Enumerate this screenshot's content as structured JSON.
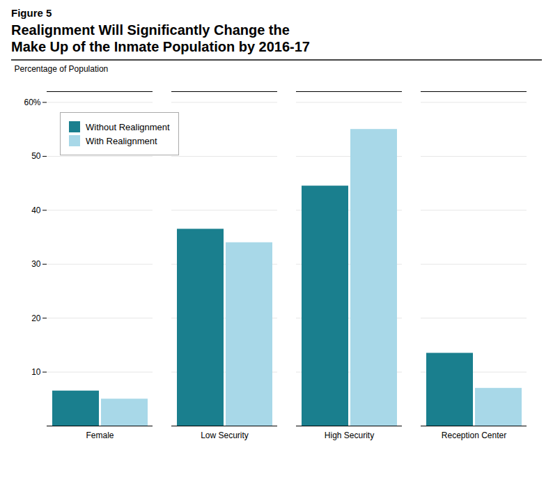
{
  "chart_data": {
    "type": "bar",
    "title": "Realignment Will Significantly Change the\nMake Up of the Inmate Population by 2016-17",
    "annotations": [
      "Figure 5"
    ],
    "ylabel": "Percentage of Population",
    "categories": [
      "Female",
      "Low Security",
      "High Security",
      "Reception Center"
    ],
    "series": [
      {
        "name": "Without Realignment",
        "color": "#1a7f8e",
        "values": [
          6.5,
          36.5,
          44.5,
          13.5
        ]
      },
      {
        "name": "With Realignment",
        "color": "#a8d8e8",
        "values": [
          5.0,
          34.0,
          55.0,
          7.0
        ]
      }
    ],
    "ylim": [
      0,
      62
    ],
    "yticks": [
      10,
      20,
      30,
      40,
      50,
      {
        "value": 60,
        "label": "60%"
      }
    ],
    "grid": true,
    "legend": "upper left"
  }
}
